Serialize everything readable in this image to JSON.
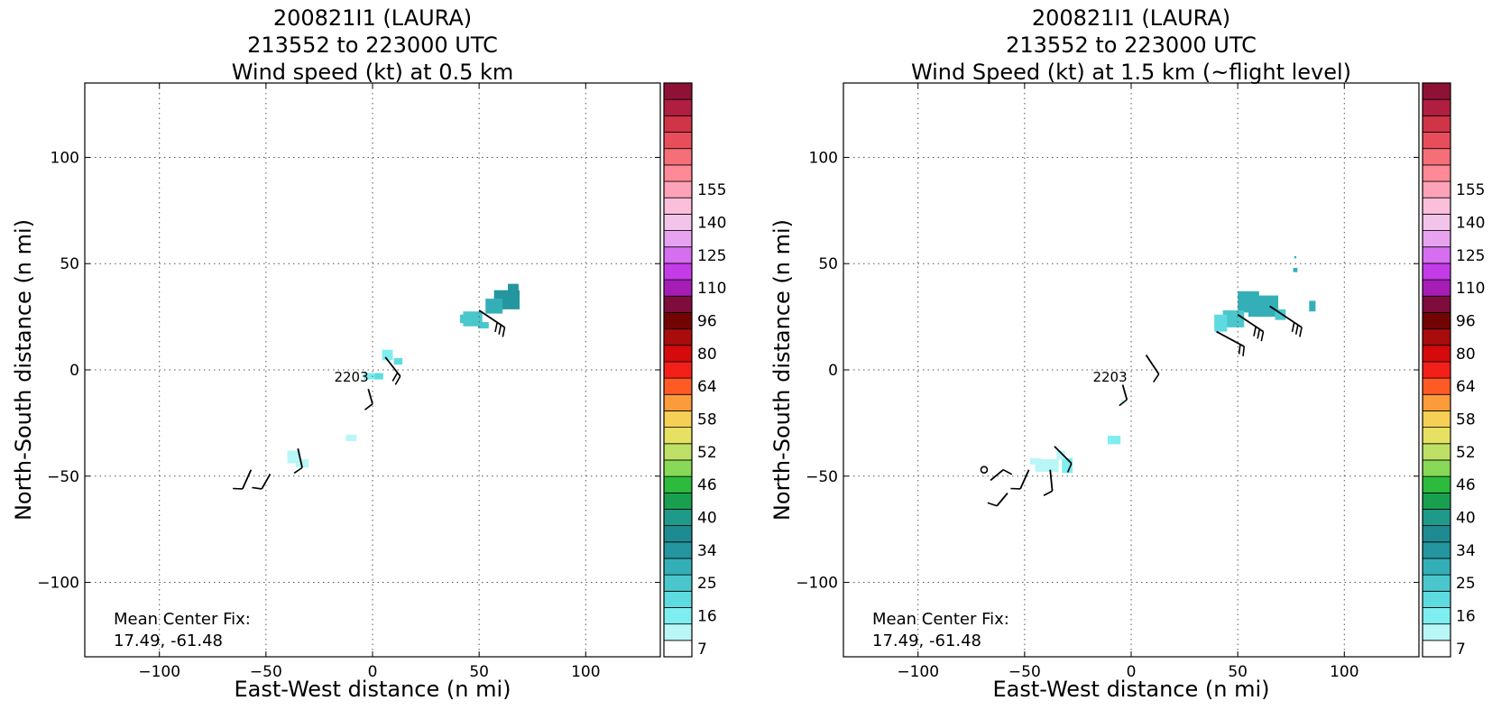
{
  "chart_data": [
    {
      "type": "heatmap",
      "title_lines": [
        "200821I1 (LAURA)",
        "213552 to 223000 UTC",
        "Wind speed (kt) at 0.5 km"
      ],
      "xlabel": "East-West distance (n mi)",
      "ylabel": "North-South distance (n mi)",
      "xlim": [
        -135,
        135
      ],
      "ylim": [
        -135,
        135
      ],
      "xticks": [
        -100,
        -50,
        0,
        50,
        100
      ],
      "yticks": [
        -100,
        -50,
        0,
        50,
        100
      ],
      "xtick_labels": [
        "−100",
        "−50",
        "0",
        "50",
        "100"
      ],
      "ytick_labels": [
        "−100",
        "−50",
        "0",
        "50",
        "100"
      ],
      "grid": true,
      "annotation": {
        "line1": "Mean Center Fix:",
        "line2": "17.49, -61.48"
      },
      "time_label": {
        "text": "2203",
        "x": -18,
        "y": -3
      },
      "patches": [
        {
          "x": 63,
          "y": 33,
          "w": 12,
          "h": 9,
          "v": 25
        },
        {
          "x": 57,
          "y": 30,
          "w": 8,
          "h": 7,
          "v": 23
        },
        {
          "x": 66,
          "y": 38,
          "w": 5,
          "h": 5,
          "v": 25
        },
        {
          "x": 47,
          "y": 24,
          "w": 9,
          "h": 7,
          "v": 21
        },
        {
          "x": 43,
          "y": 24,
          "w": 4,
          "h": 4,
          "v": 19
        },
        {
          "x": 52,
          "y": 21,
          "w": 5,
          "h": 3,
          "v": 19
        },
        {
          "x": 7,
          "y": 7,
          "w": 5,
          "h": 5,
          "v": 13
        },
        {
          "x": 12,
          "y": 4,
          "w": 4,
          "h": 3,
          "v": 16
        },
        {
          "x": -1,
          "y": -3,
          "w": 6,
          "h": 3,
          "v": 14
        },
        {
          "x": 3,
          "y": -3,
          "w": 4,
          "h": 3,
          "v": 16
        },
        {
          "x": -10,
          "y": -32,
          "w": 5,
          "h": 3,
          "v": 12
        },
        {
          "x": -37,
          "y": -41,
          "w": 6,
          "h": 6,
          "v": 10
        },
        {
          "x": -33,
          "y": -44,
          "w": 6,
          "h": 4,
          "v": 12
        },
        {
          "x": -44,
          "y": -45,
          "w": 4,
          "h": 3,
          "v": 9
        },
        {
          "x": -29,
          "y": -48,
          "w": 3,
          "h": 3,
          "v": 9
        },
        {
          "x": -73,
          "y": -53,
          "w": 3,
          "h": 3,
          "v": 9
        }
      ],
      "barbs": [
        {
          "x": 50,
          "y": 28,
          "u": 12,
          "v": -8,
          "f": 3
        },
        {
          "x": 6,
          "y": 6,
          "u": 7,
          "v": -9,
          "f": 2
        },
        {
          "x": -2,
          "y": -9,
          "u": 2,
          "v": -7,
          "f": 1
        },
        {
          "x": -35,
          "y": -37,
          "u": 2,
          "v": -9,
          "f": 1
        },
        {
          "x": -57,
          "y": -47,
          "u": -4,
          "v": -9,
          "f": 1
        },
        {
          "x": -48,
          "y": -49,
          "u": -4,
          "v": -7,
          "f": 1
        }
      ]
    },
    {
      "type": "heatmap",
      "title_lines": [
        "200821I1 (LAURA)",
        "213552 to 223000 UTC",
        "Wind Speed (kt) at 1.5 km (~flight level)"
      ],
      "xlabel": "East-West distance (n mi)",
      "ylabel": "North-South distance (n mi)",
      "xlim": [
        -135,
        135
      ],
      "ylim": [
        -135,
        135
      ],
      "xticks": [
        -100,
        -50,
        0,
        50,
        100
      ],
      "yticks": [
        -100,
        -50,
        0,
        50,
        100
      ],
      "xtick_labels": [
        "−100",
        "−50",
        "0",
        "50",
        "100"
      ],
      "ytick_labels": [
        "−100",
        "−50",
        "0",
        "50",
        "100"
      ],
      "grid": true,
      "annotation": {
        "line1": "Mean Center Fix:",
        "line2": "17.49, -61.48"
      },
      "time_label": {
        "text": "2203",
        "x": -18,
        "y": -3
      },
      "patches": [
        {
          "x": 55,
          "y": 32,
          "w": 10,
          "h": 10,
          "v": 23
        },
        {
          "x": 62,
          "y": 30,
          "w": 14,
          "h": 10,
          "v": 24
        },
        {
          "x": 48,
          "y": 24,
          "w": 10,
          "h": 8,
          "v": 21
        },
        {
          "x": 42,
          "y": 22,
          "w": 6,
          "h": 8,
          "v": 16
        },
        {
          "x": 70,
          "y": 26,
          "w": 5,
          "h": 5,
          "v": 20
        },
        {
          "x": 85,
          "y": 30,
          "w": 3,
          "h": 5,
          "v": 23
        },
        {
          "x": 77,
          "y": 47,
          "w": 2,
          "h": 2,
          "v": 23
        },
        {
          "x": 77,
          "y": 53,
          "w": 1,
          "h": 1,
          "v": 23
        },
        {
          "x": -8,
          "y": -33,
          "w": 6,
          "h": 4,
          "v": 14
        },
        {
          "x": -30,
          "y": -45,
          "w": 5,
          "h": 7,
          "v": 14
        },
        {
          "x": -40,
          "y": -45,
          "w": 12,
          "h": 6,
          "v": 10
        },
        {
          "x": -50,
          "y": -47,
          "w": 10,
          "h": 6,
          "v": 8
        },
        {
          "x": -45,
          "y": -43,
          "w": 5,
          "h": 3,
          "v": 12
        },
        {
          "x": -33,
          "y": -40,
          "w": 4,
          "h": 4,
          "v": 12
        },
        {
          "x": 6,
          "y": 8,
          "w": 1,
          "h": 2,
          "v": 9
        },
        {
          "x": 4,
          "y": 10,
          "w": 1,
          "h": 1,
          "v": 9
        },
        {
          "x": -4,
          "y": -15,
          "w": 1,
          "h": 2,
          "v": 12
        }
      ],
      "barbs": [
        {
          "x": 50,
          "y": 26,
          "u": 12,
          "v": -8,
          "f": 3
        },
        {
          "x": 65,
          "y": 30,
          "u": 15,
          "v": -10,
          "f": 3
        },
        {
          "x": 40,
          "y": 18,
          "u": 13,
          "v": -7,
          "f": 2
        },
        {
          "x": 7,
          "y": 7,
          "u": 6,
          "v": -9,
          "f": 1
        },
        {
          "x": -4,
          "y": -7,
          "u": 2,
          "v": -7,
          "f": 1
        },
        {
          "x": -36,
          "y": -36,
          "u": 8,
          "v": -8,
          "f": 1
        },
        {
          "x": -48,
          "y": -47,
          "u": -4,
          "v": -9,
          "f": 1
        },
        {
          "x": -38,
          "y": -47,
          "u": 1,
          "v": -10,
          "f": 1
        },
        {
          "x": -66,
          "y": -52,
          "u": 6,
          "v": 5,
          "f": 1
        },
        {
          "x": -58,
          "y": -58,
          "u": -5,
          "v": -6,
          "f": 1
        }
      ],
      "calm": [
        {
          "x": -69,
          "y": -47
        }
      ]
    }
  ],
  "colorbar": {
    "tick_labels": [
      "7",
      "16",
      "25",
      "34",
      "40",
      "46",
      "52",
      "58",
      "64",
      "80",
      "96",
      "110",
      "125",
      "140",
      "155"
    ],
    "bins": [
      {
        "v": 7,
        "color": "#ffffff"
      },
      {
        "v": 10,
        "color": "#b9f6f6"
      },
      {
        "v": 13,
        "color": "#7eeef0"
      },
      {
        "v": 16,
        "color": "#5edbe0"
      },
      {
        "v": 19,
        "color": "#4ac7cc"
      },
      {
        "v": 22,
        "color": "#34afb7"
      },
      {
        "v": 25,
        "color": "#23969f"
      },
      {
        "v": 28,
        "color": "#1d8b91"
      },
      {
        "v": 31,
        "color": "#1f9a8a"
      },
      {
        "v": 34,
        "color": "#18a050"
      },
      {
        "v": 37,
        "color": "#2dbb3d"
      },
      {
        "v": 40,
        "color": "#87d957"
      },
      {
        "v": 43,
        "color": "#bfe066"
      },
      {
        "v": 46,
        "color": "#e6e063"
      },
      {
        "v": 49,
        "color": "#f6cf57"
      },
      {
        "v": 52,
        "color": "#fb9b3a"
      },
      {
        "v": 55,
        "color": "#fd5a25"
      },
      {
        "v": 58,
        "color": "#f3201a"
      },
      {
        "v": 61,
        "color": "#d60a0a"
      },
      {
        "v": 64,
        "color": "#a90c0c"
      },
      {
        "v": 72,
        "color": "#720404"
      },
      {
        "v": 80,
        "color": "#7e0c3c"
      },
      {
        "v": 88,
        "color": "#a51db5"
      },
      {
        "v": 96,
        "color": "#c43ce8"
      },
      {
        "v": 103,
        "color": "#d66ef0"
      },
      {
        "v": 110,
        "color": "#e8a3f0"
      },
      {
        "v": 117,
        "color": "#f3c4e9"
      },
      {
        "v": 125,
        "color": "#fbbedb"
      },
      {
        "v": 132,
        "color": "#fda2b8"
      },
      {
        "v": 140,
        "color": "#fd8a96"
      },
      {
        "v": 147,
        "color": "#f56f78"
      },
      {
        "v": 155,
        "color": "#e84d5c"
      },
      {
        "v": 162,
        "color": "#cf3447"
      },
      {
        "v": 170,
        "color": "#b01e40"
      },
      {
        "v": 178,
        "color": "#8f1236"
      }
    ]
  }
}
